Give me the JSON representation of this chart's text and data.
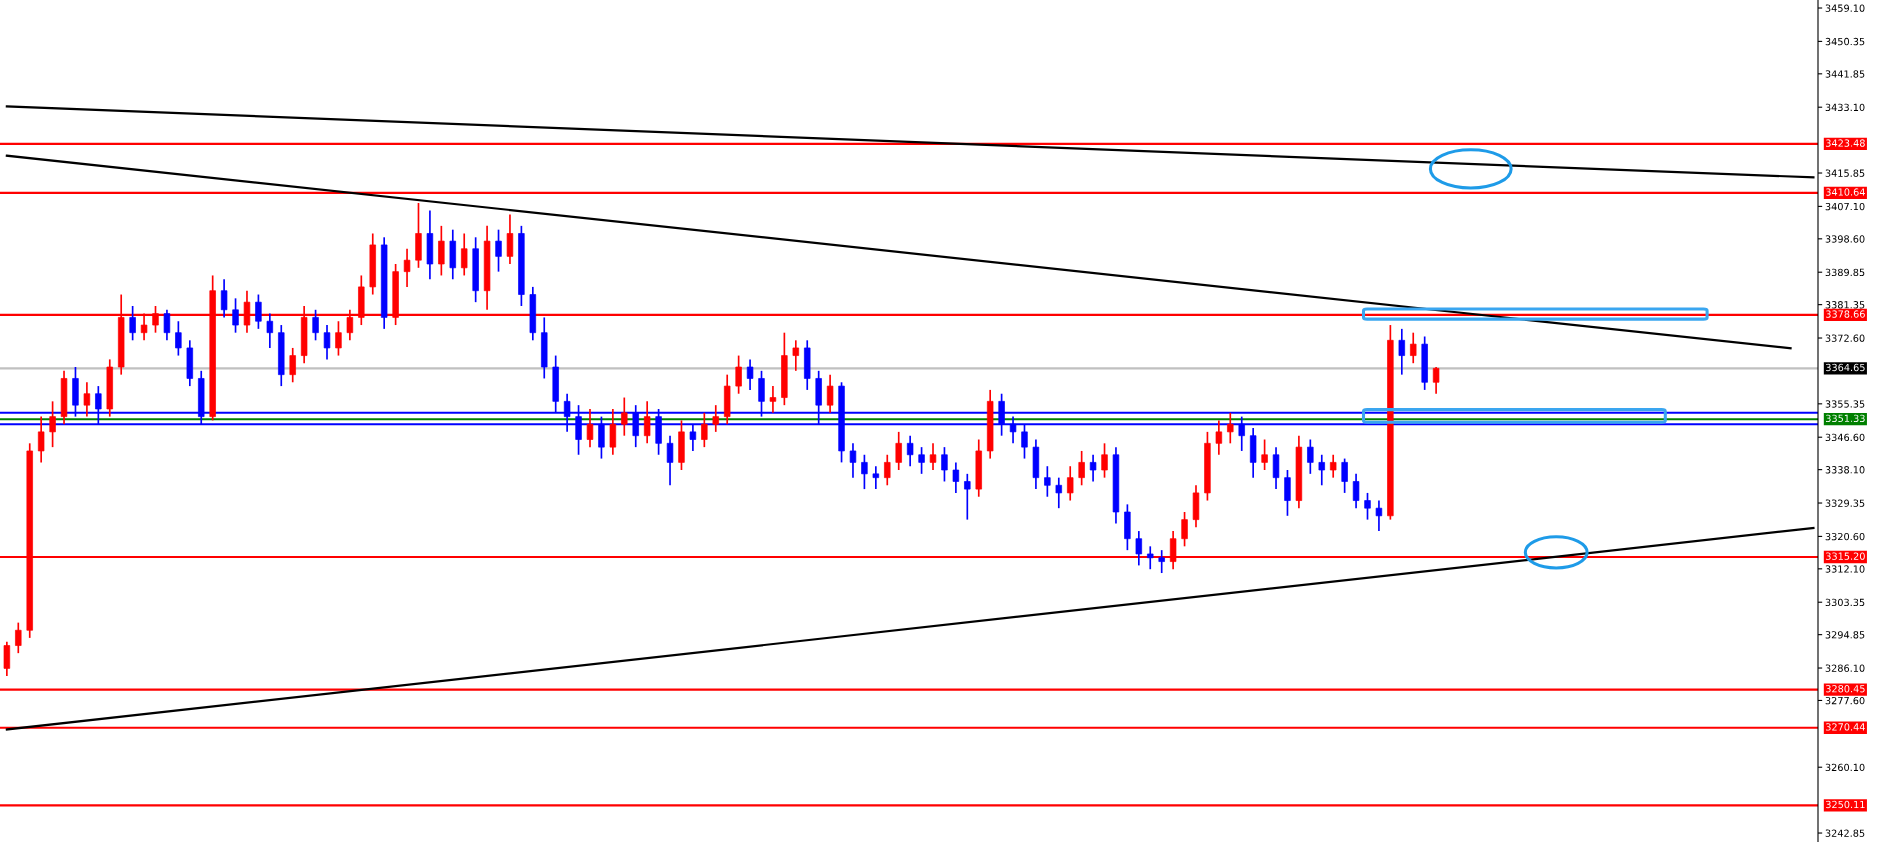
{
  "chart_data": {
    "type": "candlestick",
    "categories": [
      null,
      null,
      null,
      null,
      null,
      null,
      null,
      null,
      null,
      null,
      null,
      null,
      null,
      null,
      null,
      null,
      null,
      null,
      null,
      null,
      null,
      null,
      null,
      null,
      null,
      null,
      null,
      null,
      null,
      null,
      null,
      null,
      null,
      null,
      null,
      null,
      null,
      null,
      null,
      null,
      null,
      null,
      null,
      null,
      null,
      null,
      null,
      null,
      null,
      null,
      null,
      null,
      null,
      null,
      null,
      null,
      null,
      null,
      null,
      null,
      null,
      null,
      null,
      null,
      null,
      null,
      null,
      null,
      null,
      null,
      null,
      null,
      null,
      null,
      null,
      null,
      null,
      null,
      null,
      null,
      null,
      null,
      null,
      null,
      null,
      null,
      null,
      null,
      null,
      null,
      null,
      null,
      null,
      null,
      null,
      null,
      null,
      null,
      null,
      null,
      null,
      null,
      null,
      null,
      null,
      null,
      null,
      null,
      null,
      null,
      null,
      null,
      null,
      null,
      null,
      null,
      null,
      null,
      null,
      null,
      null,
      null,
      null,
      null,
      null,
      null,
      null,
      null,
      null,
      null,
      null,
      null,
      null,
      null,
      null,
      null,
      null,
      null,
      null,
      null,
      null,
      null,
      null,
      null,
      null,
      null,
      null,
      null,
      null,
      null,
      null,
      null,
      null,
      null,
      null,
      null,
      null,
      null,
      null
    ],
    "ohlc": [
      [
        3286,
        3293,
        3284,
        3292
      ],
      [
        3292,
        3298,
        3290,
        3296
      ],
      [
        3296,
        3345,
        3294,
        3343
      ],
      [
        3343,
        3352,
        3340,
        3348
      ],
      [
        3348,
        3356,
        3344,
        3352
      ],
      [
        3352,
        3364,
        3350,
        3362
      ],
      [
        3362,
        3365,
        3352,
        3355
      ],
      [
        3355,
        3361,
        3352,
        3358
      ],
      [
        3358,
        3360,
        3350,
        3354
      ],
      [
        3354,
        3367,
        3352,
        3365
      ],
      [
        3365,
        3384,
        3363,
        3378
      ],
      [
        3378,
        3381,
        3372,
        3374
      ],
      [
        3374,
        3379,
        3372,
        3376
      ],
      [
        3376,
        3381,
        3374,
        3379
      ],
      [
        3379,
        3380,
        3372,
        3374
      ],
      [
        3374,
        3377,
        3368,
        3370
      ],
      [
        3370,
        3372,
        3360,
        3362
      ],
      [
        3362,
        3364,
        3350,
        3352
      ],
      [
        3352,
        3389,
        3351,
        3385
      ],
      [
        3385,
        3388,
        3378,
        3380
      ],
      [
        3380,
        3383,
        3374,
        3376
      ],
      [
        3376,
        3385,
        3374,
        3382
      ],
      [
        3382,
        3384,
        3375,
        3377
      ],
      [
        3377,
        3379,
        3370,
        3374
      ],
      [
        3374,
        3376,
        3360,
        3363
      ],
      [
        3363,
        3370,
        3361,
        3368
      ],
      [
        3368,
        3381,
        3366,
        3378
      ],
      [
        3378,
        3380,
        3372,
        3374
      ],
      [
        3374,
        3376,
        3367,
        3370
      ],
      [
        3370,
        3377,
        3368,
        3374
      ],
      [
        3374,
        3380,
        3372,
        3378
      ],
      [
        3378,
        3389,
        3376,
        3386
      ],
      [
        3386,
        3400,
        3384,
        3397
      ],
      [
        3397,
        3399,
        3375,
        3378
      ],
      [
        3378,
        3392,
        3376,
        3390
      ],
      [
        3390,
        3396,
        3386,
        3393
      ],
      [
        3393,
        3408,
        3391,
        3400
      ],
      [
        3400,
        3406,
        3388,
        3392
      ],
      [
        3392,
        3402,
        3389,
        3398
      ],
      [
        3398,
        3401,
        3388,
        3391
      ],
      [
        3391,
        3400,
        3389,
        3396
      ],
      [
        3396,
        3399,
        3382,
        3385
      ],
      [
        3385,
        3402,
        3380,
        3398
      ],
      [
        3398,
        3401,
        3390,
        3394
      ],
      [
        3394,
        3405,
        3392,
        3400
      ],
      [
        3400,
        3402,
        3381,
        3384
      ],
      [
        3384,
        3386,
        3372,
        3374
      ],
      [
        3374,
        3378,
        3362,
        3365
      ],
      [
        3365,
        3368,
        3353,
        3356
      ],
      [
        3356,
        3358,
        3348,
        3352
      ],
      [
        3352,
        3355,
        3342,
        3346
      ],
      [
        3346,
        3354,
        3344,
        3350
      ],
      [
        3350,
        3352,
        3341,
        3344
      ],
      [
        3344,
        3354,
        3342,
        3350
      ],
      [
        3350,
        3357,
        3347,
        3353
      ],
      [
        3353,
        3355,
        3344,
        3347
      ],
      [
        3347,
        3356,
        3345,
        3352
      ],
      [
        3352,
        3354,
        3342,
        3345
      ],
      [
        3345,
        3347,
        3334,
        3340
      ],
      [
        3340,
        3351,
        3338,
        3348
      ],
      [
        3348,
        3350,
        3343,
        3346
      ],
      [
        3346,
        3353,
        3344,
        3350
      ],
      [
        3350,
        3355,
        3348,
        3352
      ],
      [
        3352,
        3363,
        3350,
        3360
      ],
      [
        3360,
        3368,
        3358,
        3365
      ],
      [
        3365,
        3367,
        3359,
        3362
      ],
      [
        3362,
        3364,
        3352,
        3356
      ],
      [
        3356,
        3360,
        3353,
        3357
      ],
      [
        3357,
        3374,
        3355,
        3368
      ],
      [
        3368,
        3372,
        3364,
        3370
      ],
      [
        3370,
        3372,
        3359,
        3362
      ],
      [
        3362,
        3364,
        3350,
        3355
      ],
      [
        3355,
        3363,
        3353,
        3360
      ],
      [
        3360,
        3361,
        3340,
        3343
      ],
      [
        3343,
        3345,
        3336,
        3340
      ],
      [
        3340,
        3342,
        3333,
        3337
      ],
      [
        3337,
        3339,
        3333,
        3336
      ],
      [
        3336,
        3342,
        3334,
        3340
      ],
      [
        3340,
        3348,
        3338,
        3345
      ],
      [
        3345,
        3347,
        3339,
        3342
      ],
      [
        3342,
        3344,
        3337,
        3340
      ],
      [
        3340,
        3345,
        3338,
        3342
      ],
      [
        3342,
        3344,
        3335,
        3338
      ],
      [
        3338,
        3340,
        3332,
        3335
      ],
      [
        3335,
        3337,
        3325,
        3333
      ],
      [
        3333,
        3346,
        3331,
        3343
      ],
      [
        3343,
        3359,
        3341,
        3356
      ],
      [
        3356,
        3358,
        3347,
        3350
      ],
      [
        3350,
        3352,
        3345,
        3348
      ],
      [
        3348,
        3350,
        3341,
        3344
      ],
      [
        3344,
        3346,
        3333,
        3336
      ],
      [
        3336,
        3339,
        3331,
        3334
      ],
      [
        3334,
        3336,
        3328,
        3332
      ],
      [
        3332,
        3339,
        3330,
        3336
      ],
      [
        3336,
        3343,
        3334,
        3340
      ],
      [
        3340,
        3342,
        3335,
        3338
      ],
      [
        3338,
        3345,
        3336,
        3342
      ],
      [
        3342,
        3344,
        3324,
        3327
      ],
      [
        3327,
        3329,
        3317,
        3320
      ],
      [
        3320,
        3322,
        3313,
        3316
      ],
      [
        3316,
        3318,
        3312,
        3315
      ],
      [
        3315,
        3317,
        3311,
        3314
      ],
      [
        3314,
        3322,
        3312,
        3320
      ],
      [
        3320,
        3327,
        3318,
        3325
      ],
      [
        3325,
        3334,
        3323,
        3332
      ],
      [
        3332,
        3348,
        3330,
        3345
      ],
      [
        3345,
        3351,
        3342,
        3348
      ],
      [
        3348,
        3353,
        3345,
        3350
      ],
      [
        3350,
        3352,
        3343,
        3347
      ],
      [
        3347,
        3349,
        3336,
        3340
      ],
      [
        3340,
        3346,
        3338,
        3342
      ],
      [
        3342,
        3344,
        3333,
        3336
      ],
      [
        3336,
        3338,
        3326,
        3330
      ],
      [
        3330,
        3347,
        3328,
        3344
      ],
      [
        3344,
        3346,
        3337,
        3340
      ],
      [
        3340,
        3342,
        3334,
        3338
      ],
      [
        3338,
        3342,
        3336,
        3340
      ],
      [
        3340,
        3341,
        3332,
        3335
      ],
      [
        3335,
        3337,
        3328,
        3330
      ],
      [
        3330,
        3332,
        3325,
        3328
      ],
      [
        3328,
        3330,
        3322,
        3326
      ],
      [
        3326,
        3376,
        3325,
        3372
      ],
      [
        3372,
        3375,
        3363,
        3368
      ],
      [
        3368,
        3374,
        3366,
        3371
      ],
      [
        3371,
        3373,
        3359,
        3361
      ],
      [
        3361,
        3365,
        3358,
        3364.65
      ],
      null,
      null,
      null,
      null,
      null,
      null,
      null,
      null,
      null,
      null,
      null,
      null,
      null,
      null,
      null,
      null,
      null,
      null,
      null,
      null,
      null,
      null,
      null,
      null,
      null,
      null,
      null,
      null,
      null,
      null,
      null,
      null,
      null
    ],
    "colors": [
      "#ff0000",
      "#ff0000",
      "#ff0000",
      "#ff0000",
      "#ff0000",
      "#ff0000",
      "#0000ff",
      "#ff0000",
      "#0000ff",
      "#ff0000",
      "#ff0000",
      "#0000ff",
      "#ff0000",
      "#ff0000",
      "#0000ff",
      "#0000ff",
      "#0000ff",
      "#0000ff",
      "#ff0000",
      "#0000ff",
      "#0000ff",
      "#ff0000",
      "#0000ff",
      "#0000ff",
      "#0000ff",
      "#ff0000",
      "#ff0000",
      "#0000ff",
      "#0000ff",
      "#ff0000",
      "#ff0000",
      "#ff0000",
      "#ff0000",
      "#0000ff",
      "#ff0000",
      "#ff0000",
      "#ff0000",
      "#0000ff",
      "#ff0000",
      "#0000ff",
      "#ff0000",
      "#0000ff",
      "#ff0000",
      "#0000ff",
      "#ff0000",
      "#0000ff",
      "#0000ff",
      "#0000ff",
      "#0000ff",
      "#0000ff",
      "#0000ff",
      "#ff0000",
      "#0000ff",
      "#ff0000",
      "#ff0000",
      "#0000ff",
      "#ff0000",
      "#0000ff",
      "#0000ff",
      "#ff0000",
      "#0000ff",
      "#ff0000",
      "#ff0000",
      "#ff0000",
      "#ff0000",
      "#0000ff",
      "#0000ff",
      "#ff0000",
      "#ff0000",
      "#ff0000",
      "#0000ff",
      "#0000ff",
      "#ff0000",
      "#0000ff",
      "#0000ff",
      "#0000ff",
      "#0000ff",
      "#ff0000",
      "#ff0000",
      "#0000ff",
      "#0000ff",
      "#ff0000",
      "#0000ff",
      "#0000ff",
      "#0000ff",
      "#ff0000",
      "#ff0000",
      "#0000ff",
      "#0000ff",
      "#0000ff",
      "#0000ff",
      "#0000ff",
      "#0000ff",
      "#ff0000",
      "#ff0000",
      "#0000ff",
      "#ff0000",
      "#0000ff",
      "#0000ff",
      "#0000ff",
      "#0000ff",
      "#0000ff",
      "#ff0000",
      "#ff0000",
      "#ff0000",
      "#ff0000",
      "#ff0000",
      "#ff0000",
      "#0000ff",
      "#0000ff",
      "#ff0000",
      "#0000ff",
      "#0000ff",
      "#ff0000",
      "#0000ff",
      "#0000ff",
      "#ff0000",
      "#0000ff",
      "#0000ff",
      "#0000ff",
      "#0000ff",
      "#ff0000",
      "#0000ff",
      "#ff0000",
      "#0000ff",
      "#ff0000",
      null,
      null,
      null,
      null,
      null,
      null,
      null,
      null,
      null,
      null,
      null,
      null,
      null,
      null,
      null,
      null,
      null,
      null,
      null,
      null,
      null,
      null,
      null,
      null,
      null,
      null,
      null,
      null,
      null,
      null,
      null,
      null,
      null
    ],
    "series": [
      {
        "type": "line",
        "color": "#000000",
        "values": [
          3433.3,
          null,
          null,
          null,
          null,
          null,
          null,
          null,
          null,
          null,
          null,
          null,
          null,
          null,
          null,
          null,
          null,
          null,
          null,
          null,
          null,
          null,
          null,
          null,
          null,
          null,
          null,
          null,
          null,
          null,
          null,
          null,
          null,
          null,
          null,
          null,
          null,
          null,
          null,
          null,
          null,
          null,
          null,
          null,
          null,
          null,
          null,
          null,
          null,
          null,
          null,
          null,
          null,
          null,
          null,
          null,
          null,
          null,
          null,
          null,
          null,
          null,
          null,
          null,
          null,
          null,
          null,
          null,
          null,
          null,
          null,
          null,
          null,
          null,
          null,
          null,
          null,
          null,
          null,
          null,
          null,
          null,
          null,
          null,
          null,
          null,
          null,
          null,
          null,
          null,
          null,
          null,
          null,
          null,
          null,
          null,
          null,
          null,
          null,
          null,
          null,
          null,
          null,
          null,
          null,
          null,
          null,
          null,
          null,
          null,
          null,
          null,
          null,
          null,
          null,
          null,
          null,
          null,
          null,
          null,
          null,
          null,
          null,
          null,
          null,
          null,
          null,
          null,
          null,
          null,
          null,
          null,
          null,
          null,
          null,
          null,
          null,
          null,
          null,
          null,
          null,
          null,
          null,
          null,
          null,
          null,
          null,
          null,
          null,
          null,
          null,
          null,
          null,
          null,
          null,
          null,
          null,
          null,
          3414.7
        ]
      },
      {
        "type": "line",
        "color": "#000000",
        "values": [
          3420.4,
          null,
          null,
          null,
          null,
          null,
          null,
          null,
          null,
          null,
          null,
          null,
          null,
          null,
          null,
          null,
          null,
          null,
          null,
          null,
          null,
          null,
          null,
          null,
          null,
          null,
          null,
          null,
          null,
          null,
          null,
          null,
          null,
          null,
          null,
          null,
          null,
          null,
          null,
          null,
          null,
          null,
          null,
          null,
          null,
          null,
          null,
          null,
          null,
          null,
          null,
          null,
          null,
          null,
          null,
          null,
          null,
          null,
          null,
          null,
          null,
          null,
          null,
          null,
          null,
          null,
          null,
          null,
          null,
          null,
          null,
          null,
          null,
          null,
          null,
          null,
          null,
          null,
          null,
          null,
          null,
          null,
          null,
          null,
          null,
          null,
          null,
          null,
          null,
          null,
          null,
          null,
          null,
          null,
          null,
          null,
          null,
          null,
          null,
          null,
          null,
          null,
          null,
          null,
          null,
          null,
          null,
          null,
          null,
          null,
          null,
          null,
          null,
          null,
          null,
          null,
          null,
          null,
          null,
          null,
          null,
          null,
          null,
          null,
          null,
          null,
          null,
          null,
          null,
          null,
          null,
          null,
          null,
          null,
          null,
          null,
          null,
          null,
          null,
          null,
          null,
          null,
          null,
          null,
          null,
          null,
          null,
          null,
          null,
          null,
          null,
          null,
          null,
          null,
          null,
          null,
          3369.9,
          null,
          null
        ]
      },
      {
        "type": "line",
        "color": "#000000",
        "values": [
          3270.0,
          null,
          null,
          null,
          null,
          null,
          null,
          null,
          null,
          null,
          null,
          null,
          null,
          null,
          null,
          null,
          null,
          null,
          null,
          null,
          null,
          null,
          null,
          null,
          null,
          null,
          null,
          null,
          null,
          null,
          null,
          null,
          null,
          null,
          null,
          null,
          null,
          null,
          null,
          null,
          null,
          null,
          null,
          null,
          null,
          null,
          null,
          null,
          null,
          null,
          null,
          null,
          null,
          null,
          null,
          null,
          null,
          null,
          null,
          null,
          null,
          null,
          null,
          null,
          null,
          null,
          null,
          null,
          null,
          null,
          null,
          null,
          null,
          null,
          null,
          null,
          null,
          null,
          null,
          null,
          null,
          null,
          null,
          null,
          null,
          null,
          null,
          null,
          null,
          null,
          null,
          null,
          null,
          null,
          null,
          null,
          null,
          null,
          null,
          null,
          null,
          null,
          null,
          null,
          null,
          null,
          null,
          null,
          null,
          null,
          null,
          null,
          null,
          null,
          null,
          null,
          null,
          null,
          null,
          null,
          null,
          null,
          null,
          null,
          null,
          null,
          null,
          null,
          null,
          null,
          null,
          null,
          null,
          null,
          null,
          null,
          null,
          null,
          null,
          null,
          null,
          null,
          null,
          null,
          null,
          null,
          null,
          null,
          null,
          null,
          null,
          null,
          null,
          null,
          null,
          null,
          null,
          null,
          3322.8
        ]
      }
    ],
    "ylim": [
      3240.5,
      3461.2
    ],
    "yticks": [
      {
        "value": 3459.1,
        "label": "3459.10"
      },
      {
        "value": 3450.35,
        "label": "3450.35"
      },
      {
        "value": 3441.85,
        "label": "3441.85"
      },
      {
        "value": 3433.1,
        "label": "3433.10"
      },
      {
        "value": 3415.85,
        "label": "3415.85"
      },
      {
        "value": 3407.1,
        "label": "3407.10"
      },
      {
        "value": 3398.6,
        "label": "3398.60"
      },
      {
        "value": 3389.85,
        "label": "3389.85"
      },
      {
        "value": 3381.35,
        "label": "3381.35"
      },
      {
        "value": 3372.6,
        "label": "3372.60"
      },
      {
        "value": 3355.35,
        "label": "3355.35"
      },
      {
        "value": 3346.6,
        "label": "3346.60"
      },
      {
        "value": 3338.1,
        "label": "3338.10"
      },
      {
        "value": 3329.35,
        "label": "3329.35"
      },
      {
        "value": 3320.6,
        "label": "3320.60"
      },
      {
        "value": 3312.1,
        "label": "3312.10"
      },
      {
        "value": 3303.35,
        "label": "3303.35"
      },
      {
        "value": 3294.85,
        "label": "3294.85"
      },
      {
        "value": 3286.1,
        "label": "3286.10"
      },
      {
        "value": 3277.6,
        "label": "3277.60"
      },
      {
        "value": 3260.1,
        "label": "3260.10"
      },
      {
        "value": 3242.85,
        "label": "3242.85"
      }
    ],
    "tick_labels": "y",
    "grid": false,
    "legend": false,
    "ref_lines": [
      {
        "axis": "y",
        "value": 3423.48,
        "label": "3423.48",
        "color": "#ff0000"
      },
      {
        "axis": "y",
        "value": 3410.64,
        "label": "3410.64",
        "color": "#ff0000"
      },
      {
        "axis": "y",
        "value": 3378.66,
        "label": "3378.66",
        "color": "#ff0000"
      },
      {
        "axis": "y",
        "value": 3364.65,
        "label": "3364.65",
        "color": "#c0c0c0"
      },
      {
        "axis": "y",
        "value": 3353.0,
        "label": null,
        "color": "#0000ff"
      },
      {
        "axis": "y",
        "value": 3351.33,
        "label": "3351.33",
        "color": "#008000"
      },
      {
        "axis": "y",
        "value": 3350.0,
        "label": null,
        "color": "#0000ff"
      },
      {
        "axis": "y",
        "value": 3315.2,
        "label": "3315.20",
        "color": "#ff0000"
      },
      {
        "axis": "y",
        "value": 3280.45,
        "label": "3280.45",
        "color": "#ff0000"
      },
      {
        "axis": "y",
        "value": 3270.44,
        "label": "3270.44",
        "color": "#ff0000"
      },
      {
        "axis": "y",
        "value": 3250.11,
        "label": "3250.11",
        "color": "#ff0000"
      }
    ]
  }
}
